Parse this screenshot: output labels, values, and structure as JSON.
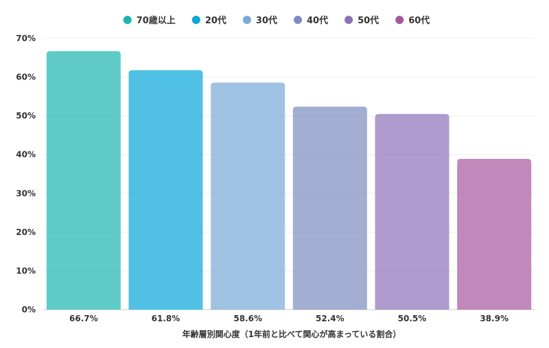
{
  "chart_data": {
    "type": "bar",
    "categories": [
      "66.7%",
      "61.8%",
      "58.6%",
      "52.4%",
      "50.5%",
      "38.9%"
    ],
    "series": [
      {
        "name": "70歳以上",
        "value": 66.7,
        "color": "#19B5B1"
      },
      {
        "name": "20代",
        "value": 61.8,
        "color": "#06A7D8"
      },
      {
        "name": "30代",
        "value": 58.6,
        "color": "#78A9D8"
      },
      {
        "name": "40代",
        "value": 52.4,
        "color": "#7C8BC1"
      },
      {
        "name": "50代",
        "value": 50.5,
        "color": "#8D71B9"
      },
      {
        "name": "60代",
        "value": 38.9,
        "color": "#A6559F"
      }
    ],
    "xlabel": "年齢層別関心度（1年前と比べて関心が高まっている割合）",
    "ylabel": "",
    "ylim": [
      0,
      70
    ],
    "yticks": [
      "0%",
      "10%",
      "20%",
      "30%",
      "40%",
      "50%",
      "60%",
      "70%"
    ],
    "grid": true,
    "legend_position": "top-center",
    "bar_opacity": 0.7
  }
}
